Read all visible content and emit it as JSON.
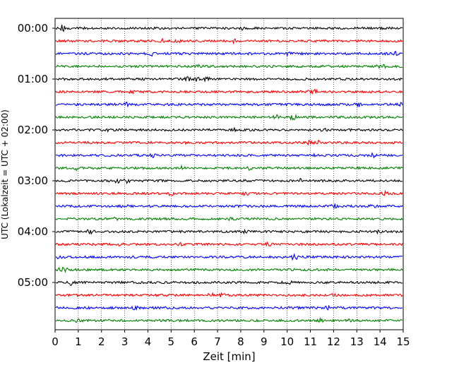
{
  "chart_data": {
    "type": "line",
    "title": "",
    "xlabel": "Zeit  [min]",
    "ylabel": "UTC (Lokalzeit = UTC + 02:00)",
    "xlim": [
      0,
      15
    ],
    "x_ticks": [
      "0",
      "1",
      "2",
      "3",
      "4",
      "5",
      "6",
      "7",
      "8",
      "9",
      "10",
      "11",
      "12",
      "13",
      "14",
      "15"
    ],
    "y_tick_labels": [
      "00:00",
      "01:00",
      "02:00",
      "03:00",
      "04:00",
      "05:00"
    ],
    "trace_interval_min": 15,
    "trace_count": 24,
    "trace_colors": [
      "#000000",
      "#ff0000",
      "#0000ff",
      "#008000"
    ],
    "grid": "vertical dotted at every minute"
  }
}
